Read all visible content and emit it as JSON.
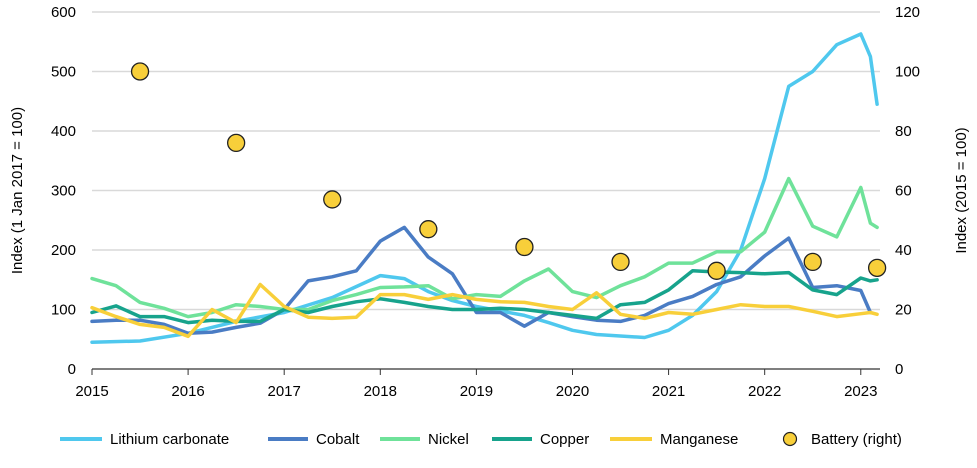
{
  "chart_data": {
    "type": "line",
    "title": "",
    "xlabel": "",
    "ylabel": "Index (1 Jan 2017 = 100)",
    "ylabel_right": "Index (2015 = 100)",
    "xlim": [
      2015,
      2023.2
    ],
    "ylim": [
      0,
      600
    ],
    "ylim_right": [
      0,
      120
    ],
    "x_ticks": [
      2015,
      2016,
      2017,
      2018,
      2019,
      2020,
      2021,
      2022,
      2023
    ],
    "x_tick_labels": [
      "2015",
      "2016",
      "2017",
      "2018",
      "2019",
      "2020",
      "2021",
      "2022",
      "2023"
    ],
    "y_ticks": [
      0,
      100,
      200,
      300,
      400,
      500,
      600
    ],
    "y_tick_labels": [
      "0",
      "100",
      "200",
      "300",
      "400",
      "500",
      "600"
    ],
    "y_ticks_right": [
      0,
      20,
      40,
      60,
      80,
      100,
      120
    ],
    "y_tick_labels_right": [
      "0",
      "20",
      "40",
      "60",
      "80",
      "100",
      "120"
    ],
    "grid": true,
    "legend_position": "bottom",
    "series": [
      {
        "name": "Lithium carbonate",
        "color": "#4FC8EE",
        "axis": "left",
        "points": [
          [
            2015,
            45
          ],
          [
            2015.5,
            47
          ],
          [
            2016,
            60
          ],
          [
            2016.5,
            80
          ],
          [
            2017,
            95
          ],
          [
            2017.5,
            120
          ],
          [
            2018,
            157
          ],
          [
            2018.25,
            152
          ],
          [
            2018.5,
            130
          ],
          [
            2018.75,
            115
          ],
          [
            2019,
            105
          ],
          [
            2019.5,
            90
          ],
          [
            2019.75,
            78
          ],
          [
            2020,
            65
          ],
          [
            2020.25,
            58
          ],
          [
            2020.75,
            53
          ],
          [
            2021,
            65
          ],
          [
            2021.25,
            90
          ],
          [
            2021.5,
            130
          ],
          [
            2021.75,
            200
          ],
          [
            2022,
            320
          ],
          [
            2022.25,
            475
          ],
          [
            2022.5,
            500
          ],
          [
            2022.75,
            545
          ],
          [
            2023,
            563
          ],
          [
            2023.1,
            525
          ],
          [
            2023.17,
            445
          ]
        ]
      },
      {
        "name": "Cobalt",
        "color": "#4A7CC4",
        "axis": "left",
        "points": [
          [
            2015,
            80
          ],
          [
            2015.25,
            82
          ],
          [
            2015.5,
            82
          ],
          [
            2015.75,
            75
          ],
          [
            2016,
            60
          ],
          [
            2016.25,
            62
          ],
          [
            2016.5,
            70
          ],
          [
            2016.75,
            77
          ],
          [
            2017,
            100
          ],
          [
            2017.25,
            148
          ],
          [
            2017.5,
            155
          ],
          [
            2017.75,
            165
          ],
          [
            2018,
            215
          ],
          [
            2018.25,
            238
          ],
          [
            2018.5,
            188
          ],
          [
            2018.75,
            160
          ],
          [
            2019,
            95
          ],
          [
            2019.25,
            95
          ],
          [
            2019.5,
            72
          ],
          [
            2019.75,
            95
          ],
          [
            2020,
            88
          ],
          [
            2020.25,
            82
          ],
          [
            2020.5,
            80
          ],
          [
            2020.75,
            90
          ],
          [
            2021,
            110
          ],
          [
            2021.25,
            122
          ],
          [
            2021.5,
            142
          ],
          [
            2021.75,
            155
          ],
          [
            2022,
            190
          ],
          [
            2022.25,
            220
          ],
          [
            2022.5,
            137
          ],
          [
            2022.75,
            140
          ],
          [
            2023,
            132
          ],
          [
            2023.1,
            95
          ]
        ]
      },
      {
        "name": "Nickel",
        "color": "#6FE29A",
        "axis": "left",
        "points": [
          [
            2015,
            152
          ],
          [
            2015.25,
            140
          ],
          [
            2015.5,
            112
          ],
          [
            2015.75,
            102
          ],
          [
            2016,
            88
          ],
          [
            2016.25,
            95
          ],
          [
            2016.5,
            108
          ],
          [
            2016.75,
            105
          ],
          [
            2017,
            100
          ],
          [
            2017.25,
            100
          ],
          [
            2017.5,
            115
          ],
          [
            2017.75,
            125
          ],
          [
            2018,
            137
          ],
          [
            2018.25,
            138
          ],
          [
            2018.5,
            140
          ],
          [
            2018.75,
            118
          ],
          [
            2019,
            125
          ],
          [
            2019.25,
            122
          ],
          [
            2019.5,
            148
          ],
          [
            2019.75,
            168
          ],
          [
            2020,
            130
          ],
          [
            2020.25,
            120
          ],
          [
            2020.5,
            140
          ],
          [
            2020.75,
            155
          ],
          [
            2021,
            178
          ],
          [
            2021.25,
            178
          ],
          [
            2021.5,
            197
          ],
          [
            2021.75,
            197
          ],
          [
            2022,
            230
          ],
          [
            2022.25,
            320
          ],
          [
            2022.5,
            240
          ],
          [
            2022.75,
            222
          ],
          [
            2023,
            305
          ],
          [
            2023.1,
            245
          ],
          [
            2023.17,
            238
          ]
        ]
      },
      {
        "name": "Copper",
        "color": "#17A38C",
        "axis": "left",
        "points": [
          [
            2015,
            95
          ],
          [
            2015.25,
            106
          ],
          [
            2015.5,
            88
          ],
          [
            2015.75,
            88
          ],
          [
            2016,
            78
          ],
          [
            2016.25,
            82
          ],
          [
            2016.5,
            80
          ],
          [
            2016.75,
            80
          ],
          [
            2017,
            100
          ],
          [
            2017.25,
            95
          ],
          [
            2017.5,
            105
          ],
          [
            2017.75,
            113
          ],
          [
            2018,
            118
          ],
          [
            2018.25,
            112
          ],
          [
            2018.5,
            105
          ],
          [
            2018.75,
            100
          ],
          [
            2019,
            100
          ],
          [
            2019.25,
            102
          ],
          [
            2019.5,
            100
          ],
          [
            2019.75,
            95
          ],
          [
            2020,
            90
          ],
          [
            2020.25,
            85
          ],
          [
            2020.5,
            108
          ],
          [
            2020.75,
            112
          ],
          [
            2021,
            133
          ],
          [
            2021.25,
            165
          ],
          [
            2021.5,
            163
          ],
          [
            2021.75,
            162
          ],
          [
            2022,
            160
          ],
          [
            2022.25,
            162
          ],
          [
            2022.5,
            133
          ],
          [
            2022.75,
            125
          ],
          [
            2023,
            153
          ],
          [
            2023.1,
            148
          ],
          [
            2023.17,
            150
          ]
        ]
      },
      {
        "name": "Manganese",
        "color": "#F8CF3A",
        "axis": "left",
        "points": [
          [
            2015,
            103
          ],
          [
            2015.25,
            88
          ],
          [
            2015.5,
            75
          ],
          [
            2015.75,
            70
          ],
          [
            2016,
            55
          ],
          [
            2016.25,
            100
          ],
          [
            2016.5,
            78
          ],
          [
            2016.75,
            142
          ],
          [
            2017,
            105
          ],
          [
            2017.25,
            87
          ],
          [
            2017.5,
            85
          ],
          [
            2017.75,
            87
          ],
          [
            2018,
            125
          ],
          [
            2018.25,
            125
          ],
          [
            2018.5,
            117
          ],
          [
            2018.75,
            125
          ],
          [
            2019,
            117
          ],
          [
            2019.25,
            113
          ],
          [
            2019.5,
            112
          ],
          [
            2019.75,
            105
          ],
          [
            2020,
            100
          ],
          [
            2020.25,
            128
          ],
          [
            2020.5,
            92
          ],
          [
            2020.75,
            85
          ],
          [
            2021,
            95
          ],
          [
            2021.25,
            92
          ],
          [
            2021.5,
            100
          ],
          [
            2021.75,
            108
          ],
          [
            2022,
            105
          ],
          [
            2022.25,
            105
          ],
          [
            2022.5,
            97
          ],
          [
            2022.75,
            88
          ],
          [
            2023,
            93
          ],
          [
            2023.1,
            95
          ],
          [
            2023.17,
            92
          ]
        ]
      },
      {
        "name": "Battery (right)",
        "color": "#F8CF3A",
        "edge_color": "#222222",
        "axis": "right",
        "marker": "circle",
        "points": [
          [
            2015.5,
            100
          ],
          [
            2016.5,
            76
          ],
          [
            2017.5,
            57
          ],
          [
            2018.5,
            47
          ],
          [
            2019.5,
            41
          ],
          [
            2020.5,
            36
          ],
          [
            2021.5,
            33
          ],
          [
            2022.5,
            36
          ],
          [
            2023.17,
            34
          ]
        ]
      }
    ]
  }
}
